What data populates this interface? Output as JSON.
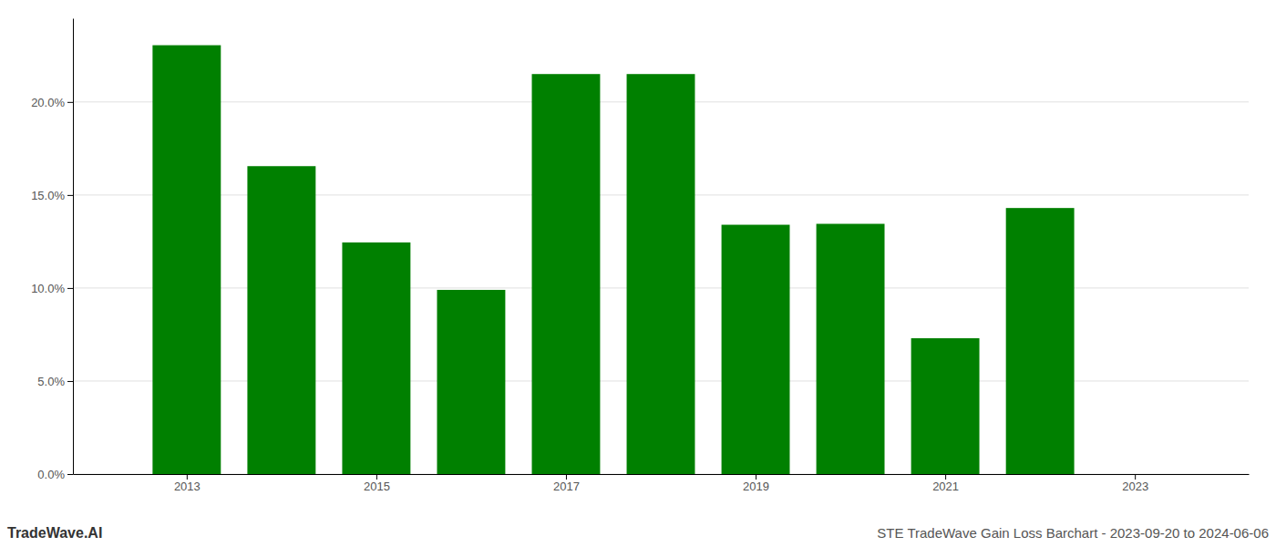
{
  "chart_data": {
    "type": "bar",
    "title": "STE TradeWave Gain Loss Barchart - 2023-09-20 to 2024-06-06",
    "annotations": [
      "TradeWave.AI"
    ],
    "x": [
      2013,
      2014,
      2015,
      2016,
      2017,
      2018,
      2019,
      2020,
      2021,
      2022
    ],
    "values": [
      0.2305,
      0.1655,
      0.1245,
      0.099,
      0.215,
      0.215,
      0.134,
      0.1345,
      0.073,
      0.143
    ],
    "color": "#008000",
    "xlim": [
      2011.8,
      2024.2
    ],
    "xticks": [
      2013,
      2015,
      2017,
      2019,
      2021,
      2023
    ],
    "ylim": [
      0,
      0.245
    ],
    "yticks": [
      {
        "value": 0.0,
        "label": "0.0%"
      },
      {
        "value": 0.05,
        "label": "5.0%"
      },
      {
        "value": 0.1,
        "label": "10.0%"
      },
      {
        "value": 0.15,
        "label": "15.0%"
      },
      {
        "value": 0.2,
        "label": "20.0%"
      }
    ],
    "grid": true
  }
}
